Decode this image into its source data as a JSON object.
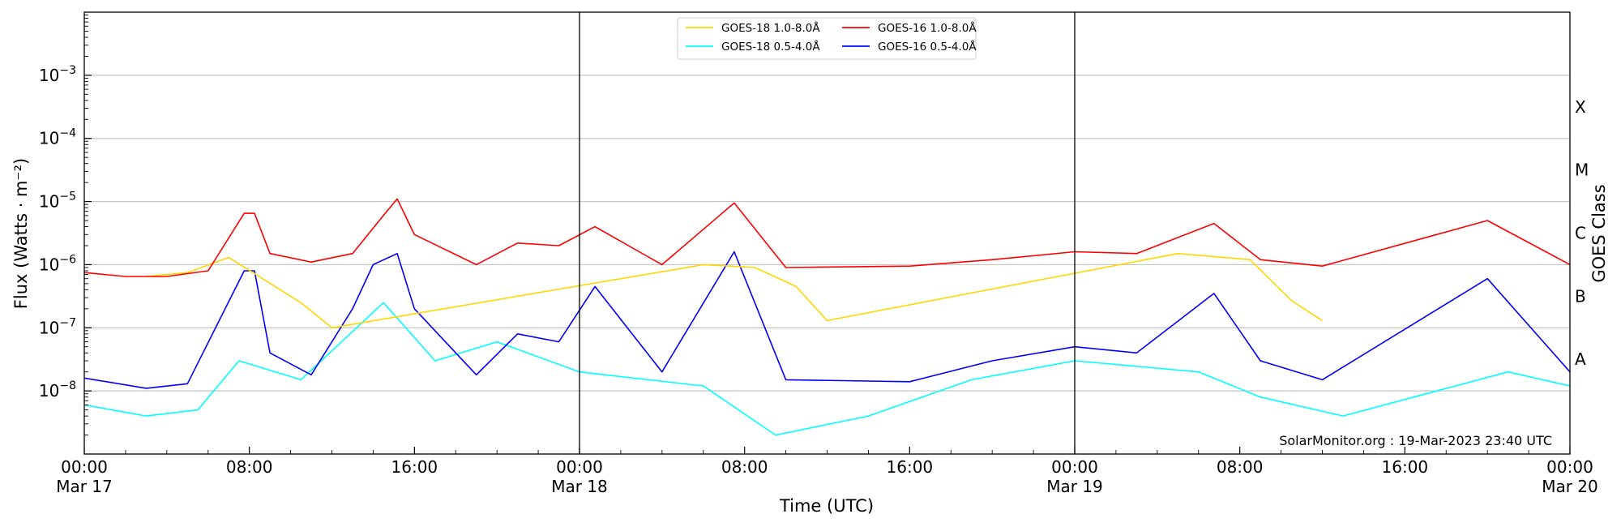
{
  "chart_data": {
    "type": "line",
    "y_scale": "log",
    "ylim": [
      1e-09,
      0.01
    ],
    "x_range": [
      "2023-03-17 00:00",
      "2023-03-20 00:00"
    ],
    "xlabel": "Time (UTC)",
    "ylabel": "Flux (Watts · m⁻²)",
    "right_axis_label": "GOES Class",
    "grid": "horizontal at decades",
    "legend_placement": "top-center",
    "x_ticks": [
      {
        "time": "2023-03-17 00:00",
        "line1": "00:00",
        "line2": "Mar 17"
      },
      {
        "time": "2023-03-17 08:00",
        "line1": "08:00",
        "line2": ""
      },
      {
        "time": "2023-03-17 16:00",
        "line1": "16:00",
        "line2": ""
      },
      {
        "time": "2023-03-18 00:00",
        "line1": "00:00",
        "line2": "Mar 18"
      },
      {
        "time": "2023-03-18 08:00",
        "line1": "08:00",
        "line2": ""
      },
      {
        "time": "2023-03-18 16:00",
        "line1": "16:00",
        "line2": ""
      },
      {
        "time": "2023-03-19 00:00",
        "line1": "00:00",
        "line2": "Mar 19"
      },
      {
        "time": "2023-03-19 08:00",
        "line1": "08:00",
        "line2": ""
      },
      {
        "time": "2023-03-19 16:00",
        "line1": "16:00",
        "line2": ""
      },
      {
        "time": "2023-03-20 00:00",
        "line1": "00:00",
        "line2": "Mar 20"
      }
    ],
    "day_boundaries": [
      "2023-03-18 00:00",
      "2023-03-19 00:00"
    ],
    "y_ticks": [
      {
        "value": 1e-08,
        "base": "10",
        "exp": "−8"
      },
      {
        "value": 1e-07,
        "base": "10",
        "exp": "−7"
      },
      {
        "value": 1e-06,
        "base": "10",
        "exp": "−6"
      },
      {
        "value": 1e-05,
        "base": "10",
        "exp": "−5"
      },
      {
        "value": 0.0001,
        "base": "10",
        "exp": "−4"
      },
      {
        "value": 0.001,
        "base": "10",
        "exp": "−3"
      }
    ],
    "goes_classes": [
      {
        "label": "A",
        "value": 3.16e-08
      },
      {
        "label": "B",
        "value": 3.16e-07
      },
      {
        "label": "C",
        "value": 3.16e-06
      },
      {
        "label": "M",
        "value": 3.16e-05
      },
      {
        "label": "X",
        "value": 0.000316
      }
    ],
    "series": [
      {
        "name": "GOES-18 1.0-8.0Å",
        "color": "#ffd700",
        "points": [
          [
            "2023-03-17 03:00",
            6.5e-07
          ],
          [
            "2023-03-17 05:00",
            7.5e-07
          ],
          [
            "2023-03-17 07:00",
            1.3e-06
          ],
          [
            "2023-03-17 10:30",
            2.5e-07
          ],
          [
            "2023-03-17 12:00",
            1e-07
          ],
          [
            "2023-03-18 06:00",
            1e-06
          ],
          [
            "2023-03-18 08:30",
            9e-07
          ],
          [
            "2023-03-18 10:30",
            4.5e-07
          ],
          [
            "2023-03-18 12:00",
            1.3e-07
          ],
          [
            "2023-03-19 05:00",
            1.5e-06
          ],
          [
            "2023-03-19 08:30",
            1.2e-06
          ],
          [
            "2023-03-19 10:30",
            2.7e-07
          ],
          [
            "2023-03-19 12:00",
            1.3e-07
          ]
        ]
      },
      {
        "name": "GOES-18 0.5-4.0Å",
        "color": "#00ffff",
        "points": [
          [
            "2023-03-17 00:00",
            6e-09
          ],
          [
            "2023-03-17 03:00",
            4e-09
          ],
          [
            "2023-03-17 05:30",
            5e-09
          ],
          [
            "2023-03-17 07:30",
            3e-08
          ],
          [
            "2023-03-17 10:30",
            1.5e-08
          ],
          [
            "2023-03-17 14:30",
            2.5e-07
          ],
          [
            "2023-03-17 17:00",
            3e-08
          ],
          [
            "2023-03-17 20:00",
            6e-08
          ],
          [
            "2023-03-18 00:00",
            2e-08
          ],
          [
            "2023-03-18 06:00",
            1.2e-08
          ],
          [
            "2023-03-18 09:30",
            2e-09
          ],
          [
            "2023-03-18 14:00",
            4e-09
          ],
          [
            "2023-03-18 19:00",
            1.5e-08
          ],
          [
            "2023-03-19 00:00",
            3e-08
          ],
          [
            "2023-03-19 06:00",
            2e-08
          ],
          [
            "2023-03-19 09:00",
            8e-09
          ],
          [
            "2023-03-19 13:00",
            4e-09
          ],
          [
            "2023-03-19 21:00",
            2e-08
          ],
          [
            "2023-03-19 24:00",
            1.2e-08
          ]
        ]
      },
      {
        "name": "GOES-16 1.0-8.0Å",
        "color": "#ff0000",
        "points": [
          [
            "2023-03-17 00:00",
            7.5e-07
          ],
          [
            "2023-03-17 02:00",
            6.5e-07
          ],
          [
            "2023-03-17 04:00",
            6.5e-07
          ],
          [
            "2023-03-17 06:00",
            8e-07
          ],
          [
            "2023-03-17 07:45",
            6.5e-06
          ],
          [
            "2023-03-17 08:15",
            6.5e-06
          ],
          [
            "2023-03-17 09:00",
            1.5e-06
          ],
          [
            "2023-03-17 11:00",
            1.1e-06
          ],
          [
            "2023-03-17 13:00",
            1.5e-06
          ],
          [
            "2023-03-17 14:30",
            6e-06
          ],
          [
            "2023-03-17 15:10",
            1.1e-05
          ],
          [
            "2023-03-17 16:00",
            3e-06
          ],
          [
            "2023-03-17 19:00",
            1e-06
          ],
          [
            "2023-03-17 21:00",
            2.2e-06
          ],
          [
            "2023-03-17 23:00",
            2e-06
          ],
          [
            "2023-03-18 00:45",
            4e-06
          ],
          [
            "2023-03-18 04:00",
            1e-06
          ],
          [
            "2023-03-18 07:30",
            9.5e-06
          ],
          [
            "2023-03-18 10:00",
            9e-07
          ],
          [
            "2023-03-18 16:00",
            9.5e-07
          ],
          [
            "2023-03-18 20:00",
            1.2e-06
          ],
          [
            "2023-03-19 00:00",
            1.6e-06
          ],
          [
            "2023-03-19 03:00",
            1.5e-06
          ],
          [
            "2023-03-19 06:45",
            4.5e-06
          ],
          [
            "2023-03-19 09:00",
            1.2e-06
          ],
          [
            "2023-03-19 12:00",
            9.5e-07
          ],
          [
            "2023-03-19 20:00",
            5e-06
          ],
          [
            "2023-03-19 24:00",
            1e-06
          ]
        ]
      },
      {
        "name": "GOES-16 0.5-4.0Å",
        "color": "#0000ff",
        "points": [
          [
            "2023-03-17 00:00",
            1.6e-08
          ],
          [
            "2023-03-17 03:00",
            1.1e-08
          ],
          [
            "2023-03-17 05:00",
            1.3e-08
          ],
          [
            "2023-03-17 07:45",
            8e-07
          ],
          [
            "2023-03-17 08:15",
            8e-07
          ],
          [
            "2023-03-17 09:00",
            4e-08
          ],
          [
            "2023-03-17 11:00",
            1.8e-08
          ],
          [
            "2023-03-17 13:00",
            2e-07
          ],
          [
            "2023-03-17 14:00",
            1e-06
          ],
          [
            "2023-03-17 15:10",
            1.5e-06
          ],
          [
            "2023-03-17 16:00",
            2e-07
          ],
          [
            "2023-03-17 19:00",
            1.8e-08
          ],
          [
            "2023-03-17 21:00",
            8e-08
          ],
          [
            "2023-03-17 23:00",
            6e-08
          ],
          [
            "2023-03-18 00:45",
            4.5e-07
          ],
          [
            "2023-03-18 04:00",
            2e-08
          ],
          [
            "2023-03-18 07:30",
            1.6e-06
          ],
          [
            "2023-03-18 10:00",
            1.5e-08
          ],
          [
            "2023-03-18 16:00",
            1.4e-08
          ],
          [
            "2023-03-18 20:00",
            3e-08
          ],
          [
            "2023-03-19 00:00",
            5e-08
          ],
          [
            "2023-03-19 03:00",
            4e-08
          ],
          [
            "2023-03-19 06:45",
            3.5e-07
          ],
          [
            "2023-03-19 09:00",
            3e-08
          ],
          [
            "2023-03-19 12:00",
            1.5e-08
          ],
          [
            "2023-03-19 20:00",
            6e-07
          ],
          [
            "2023-03-19 24:00",
            2e-08
          ]
        ]
      }
    ],
    "annotation": "SolarMonitor.org : 19-Mar-2023 23:40 UTC"
  }
}
